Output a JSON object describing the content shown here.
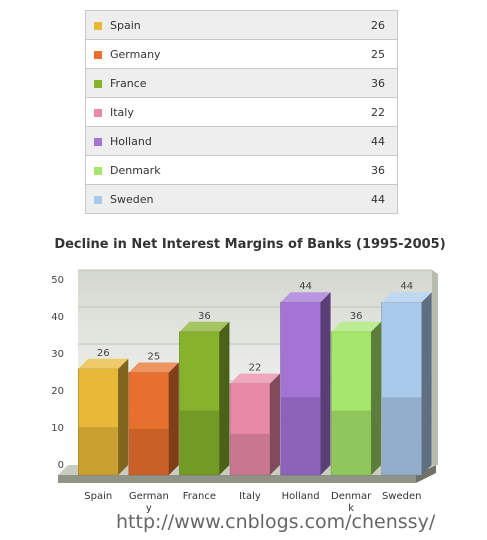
{
  "chart_data": {
    "type": "bar",
    "title": "Decline in Net Interest Margins of Banks (1995-2005)",
    "categories": [
      "Spain",
      "Germany",
      "France",
      "Italy",
      "Holland",
      "Denmark",
      "Sweden"
    ],
    "tick_labels": [
      "Spain",
      "German\ny",
      "France",
      "Italy",
      "Holland",
      "Denmar\nk",
      "Sweden"
    ],
    "values": [
      26,
      25,
      36,
      22,
      44,
      36,
      44
    ],
    "ylim": [
      0,
      50
    ],
    "yticks": [
      0,
      10,
      20,
      30,
      40,
      50
    ],
    "colors": [
      "#e8b838",
      "#e8702e",
      "#86b22c",
      "#e889a6",
      "#a373d6",
      "#a6e66c",
      "#a9c9eb"
    ],
    "grid": true,
    "style": "3d"
  },
  "legend_rows": [
    {
      "label": "Spain",
      "value": "26"
    },
    {
      "label": "Germany",
      "value": "25"
    },
    {
      "label": "France",
      "value": "36"
    },
    {
      "label": "Italy",
      "value": "22"
    },
    {
      "label": "Holland",
      "value": "44"
    },
    {
      "label": "Denmark",
      "value": "36"
    },
    {
      "label": "Sweden",
      "value": "44"
    }
  ],
  "watermark": "http://www.cnblogs.com/chenssy/"
}
